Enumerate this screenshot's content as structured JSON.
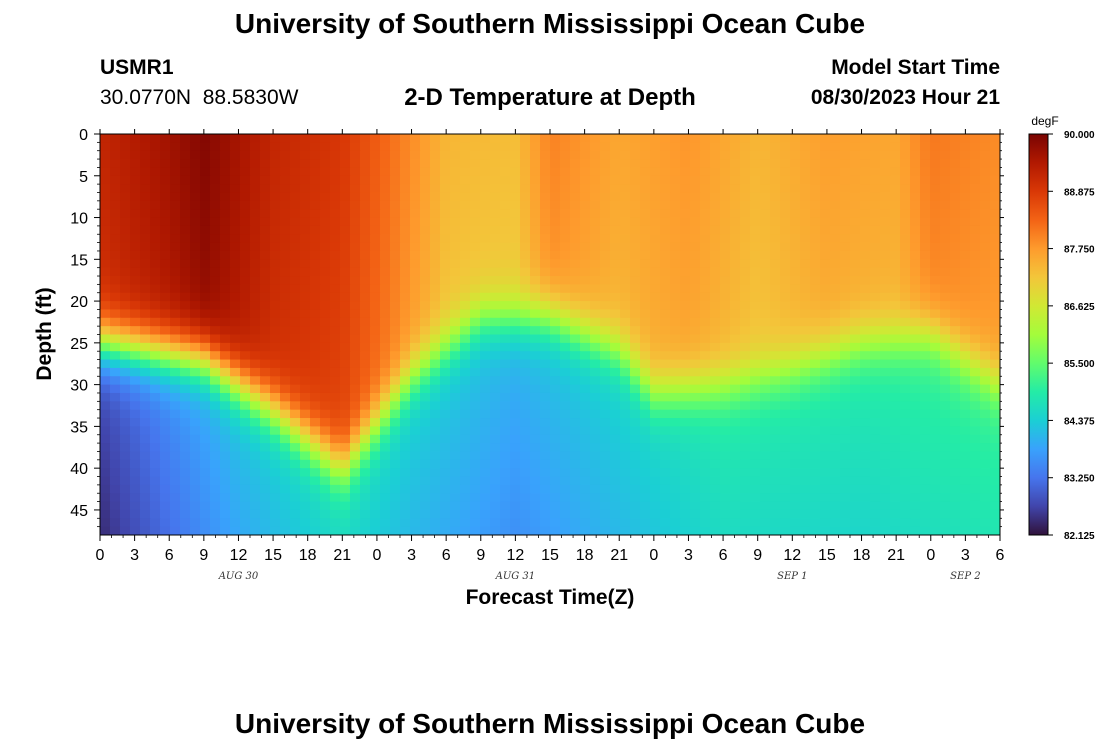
{
  "header": {
    "title": "University of Southern Mississippi Ocean Cube",
    "station_id": "USMR1",
    "coordinates": "30.0770N  88.5830W",
    "plot_title": "2-D Temperature at Depth",
    "model_start_label": "Model Start Time",
    "model_start_value": "08/30/2023 Hour 21"
  },
  "footer": {
    "title": "University of Southern Mississippi Ocean Cube"
  },
  "colors": {
    "colormap": [
      "#30123b",
      "#4145ab",
      "#4675ed",
      "#39a2fc",
      "#1bcfd4",
      "#24eca6",
      "#61fc6c",
      "#a4fc3b",
      "#d1e834",
      "#f3c63a",
      "#fe9b2d",
      "#f36315",
      "#d93806",
      "#b11901",
      "#7a0402"
    ]
  },
  "chart_data": {
    "type": "heatmap",
    "title": "2-D Temperature at Depth",
    "xlabel": "Forecast Time(Z)",
    "ylabel": "Depth (ft)",
    "x_range_hours": [
      0,
      78
    ],
    "ylim": [
      0,
      48
    ],
    "x_tick_labels": [
      "0",
      "3",
      "6",
      "9",
      "12",
      "15",
      "18",
      "21",
      "0",
      "3",
      "6",
      "9",
      "12",
      "15",
      "18",
      "21",
      "0",
      "3",
      "6",
      "9",
      "12",
      "15",
      "18",
      "21",
      "0",
      "3",
      "6"
    ],
    "y_ticks": [
      0,
      5,
      10,
      15,
      20,
      25,
      30,
      35,
      40,
      45
    ],
    "date_labels": [
      {
        "text": "AUG 30",
        "hour": 12
      },
      {
        "text": "AUG 31",
        "hour": 36
      },
      {
        "text": "SEP 1",
        "hour": 60
      },
      {
        "text": "SEP 2",
        "hour": 75
      }
    ],
    "colorbar": {
      "unit": "degF",
      "min": 82.125,
      "max": 90.0,
      "tick_labels": [
        "90.000",
        "88.875",
        "87.750",
        "86.625",
        "85.500",
        "84.375",
        "83.250",
        "82.125"
      ]
    },
    "thermocline_depth_ft": [
      [
        0,
        25
      ],
      [
        9,
        27
      ],
      [
        15,
        33
      ],
      [
        21,
        40
      ],
      [
        27,
        29
      ],
      [
        33,
        22
      ],
      [
        39,
        22
      ],
      [
        45,
        26
      ],
      [
        48,
        31
      ],
      [
        54,
        30
      ],
      [
        60,
        28
      ],
      [
        66,
        25
      ],
      [
        72,
        24
      ],
      [
        78,
        30
      ]
    ],
    "surface_temp_degF": [
      [
        0,
        89.2
      ],
      [
        6,
        89.6
      ],
      [
        9,
        89.9
      ],
      [
        15,
        89.2
      ],
      [
        21,
        88.9
      ],
      [
        27,
        87.9
      ],
      [
        30,
        87.4
      ],
      [
        36,
        87.3
      ],
      [
        39,
        88.0
      ],
      [
        45,
        87.6
      ],
      [
        51,
        87.8
      ],
      [
        57,
        87.4
      ],
      [
        63,
        87.7
      ],
      [
        69,
        87.6
      ],
      [
        72,
        88.1
      ],
      [
        78,
        87.9
      ]
    ],
    "bottom_temp_degF": [
      [
        0,
        82.4
      ],
      [
        6,
        83.2
      ],
      [
        12,
        83.9
      ],
      [
        21,
        84.6
      ],
      [
        27,
        84.1
      ],
      [
        36,
        83.6
      ],
      [
        45,
        84.1
      ],
      [
        54,
        84.6
      ],
      [
        66,
        84.5
      ],
      [
        78,
        84.8
      ]
    ]
  }
}
